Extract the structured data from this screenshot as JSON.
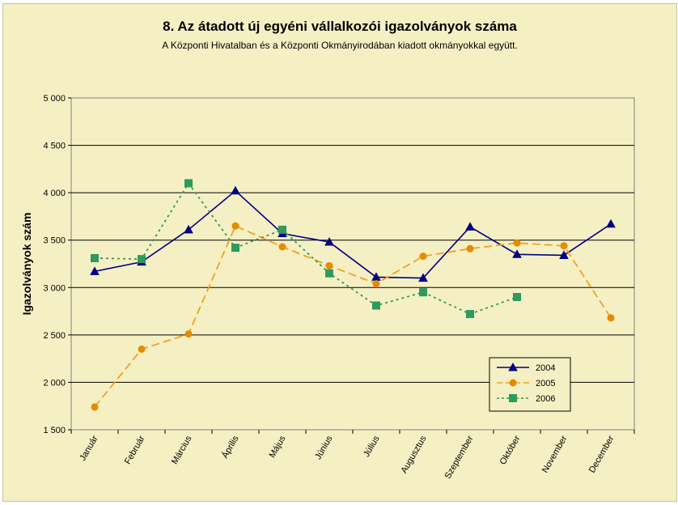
{
  "chart_data": {
    "type": "line",
    "title": "8. Az átadott új egyéni vállalkozói  igazolványok száma",
    "subtitle": "A Központi Hivatalban és a Központi Okmányirodában kiadott okmányokkal együtt.",
    "ylabel": "Igazolványok szám",
    "xlabel": "",
    "ylim": [
      1500,
      5000
    ],
    "yticks": [
      1500,
      2000,
      2500,
      3000,
      3500,
      4000,
      4500,
      5000
    ],
    "ytick_labels": [
      "1 500",
      "2 000",
      "2 500",
      "3 000",
      "3 500",
      "4 000",
      "4 500",
      "5 000"
    ],
    "grid": "horizontal",
    "legend_position": "bottom-right",
    "categories": [
      "Január",
      "Február",
      "Március",
      "Április",
      "Május",
      "Június",
      "Július",
      "Augusztus",
      "Szeptember",
      "Október",
      "November",
      "December"
    ],
    "series": [
      {
        "name": "2004",
        "color": "#000080",
        "marker": "triangle",
        "line_style": "solid",
        "values": [
          3170,
          3270,
          3610,
          4020,
          3570,
          3480,
          3110,
          3100,
          3640,
          3350,
          3340,
          3670
        ]
      },
      {
        "name": "2005",
        "color": "#f5a020",
        "marker_color": "#e68a00",
        "marker": "circle",
        "line_style": "dashed",
        "values": [
          1740,
          2350,
          2510,
          3650,
          3430,
          3230,
          3040,
          3330,
          3410,
          3470,
          3440,
          2680
        ]
      },
      {
        "name": "2006",
        "color": "#2e9a5c",
        "marker": "square",
        "line_style": "dotted",
        "values": [
          3310,
          3300,
          4100,
          3420,
          3610,
          3150,
          2810,
          2950,
          2720,
          2900,
          null,
          null
        ]
      }
    ]
  }
}
